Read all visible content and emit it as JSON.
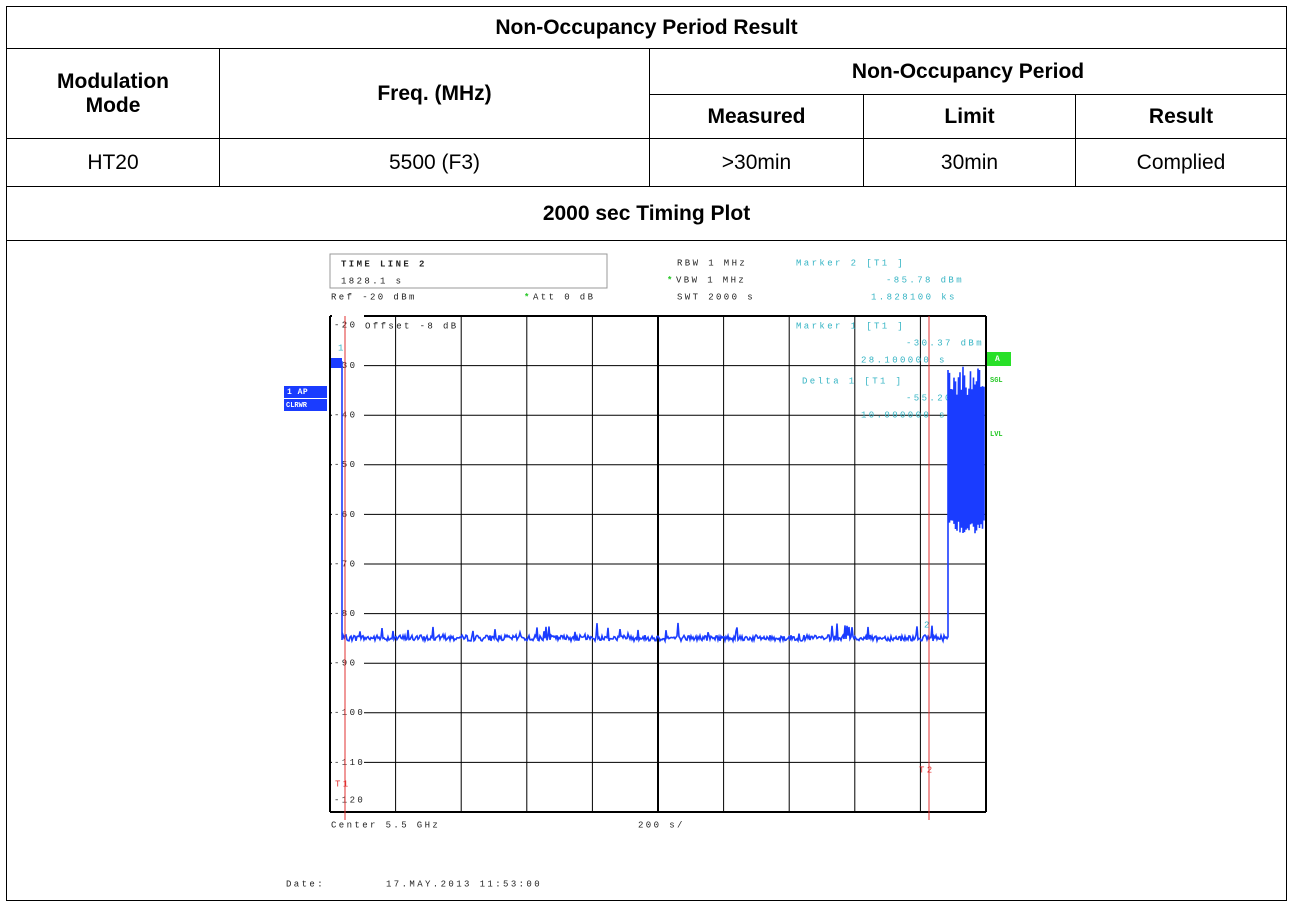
{
  "header": {
    "title": "Non-Occupancy Period Result"
  },
  "table": {
    "columns": {
      "mode": "Modulation Mode",
      "freq": "Freq. (MHz)",
      "group": "Non-Occupancy Period",
      "measured": "Measured",
      "limit": "Limit",
      "result": "Result"
    },
    "rows": [
      [
        "HT20",
        "5500 (F3)",
        ">30min",
        "30min",
        "Complied"
      ]
    ]
  },
  "plot": {
    "title": "2000 sec Timing Plot",
    "time_line": "TIME LINE 2",
    "time_value": "1828.1 s",
    "ref": "Ref -20 dBm",
    "star": "*",
    "att": "Att  0 dB",
    "rbw": "RBW 1 MHz",
    "vbw": "VBW 1 MHz",
    "swt": "SWT 2000 s",
    "marker2": "Marker 2 [T1 ]",
    "marker2_level": "-85.78 dBm",
    "marker2_time": "1.828100 ks",
    "offset": "Offset -8 dB",
    "marker1": "Marker 1 [T1 ]",
    "marker1_level": "-30.37 dBm",
    "marker1_time": "28.100000 s",
    "delta": "Delta 1 [T1 ]",
    "delta_level": "-55.20 dB",
    "delta_time": "10.000000 s",
    "trace_label": "1 AP",
    "trace_mode": "CLRWR",
    "side_a": "A",
    "side_sgl": "SGL",
    "side_lvl": "LVL",
    "t1": "T1",
    "t2": "T2",
    "m1": "1",
    "m2": "2",
    "y_labels": [
      "-20",
      "-30",
      "-40",
      "-50",
      "-60",
      "-70",
      "-80",
      "-90",
      "-100",
      "-110",
      "-120"
    ],
    "center": "Center 5.5 GHz",
    "span": "200 s/",
    "date_label": "Date:",
    "date": "17.MAY.2013  11:53:00"
  }
}
